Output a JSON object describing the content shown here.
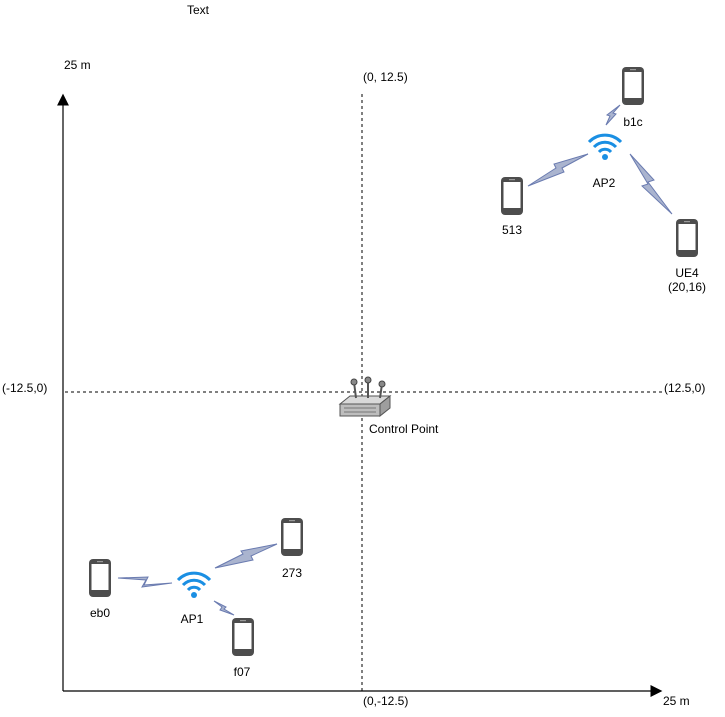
{
  "header": {
    "text": "Text"
  },
  "axes": {
    "y_top": "25 m",
    "x_right": "25 m",
    "top_center": "(0, 12.5)",
    "bottom_center": "(0,-12.5)",
    "left_mid": "(-12.5,0)",
    "right_mid": "(12.5,0)"
  },
  "control_point": {
    "label": "Control Point",
    "icon": "router-icon"
  },
  "access_points": [
    {
      "label": "AP2",
      "icon": "wifi-icon",
      "color": "#1a8fe3"
    },
    {
      "label": "AP1",
      "icon": "wifi-icon",
      "color": "#1a8fe3"
    }
  ],
  "devices": {
    "b1c": "b1c",
    "d513": "513",
    "ue4": "UE4",
    "ue4_coords": "(20,16)",
    "eb0": "eb0",
    "d273": "273",
    "f07": "f07"
  },
  "colors": {
    "phone": "#4d4d4d",
    "bolt_fill": "#aab4cf",
    "bolt_stroke": "#6a7bb0",
    "wifi": "#1a8fe3"
  }
}
